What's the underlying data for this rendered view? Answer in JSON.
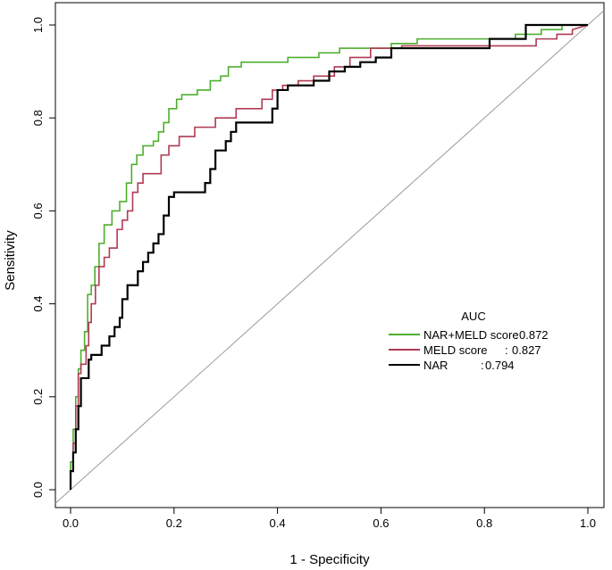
{
  "chart_data": {
    "type": "line",
    "xlabel": "1 - Specificity",
    "ylabel": "Sensitivity",
    "xlim": [
      0,
      1
    ],
    "ylim": [
      0,
      1
    ],
    "xticks": [
      "0.0",
      "0.2",
      "0.4",
      "0.6",
      "0.8",
      "1.0"
    ],
    "yticks": [
      "0.0",
      "0.2",
      "0.4",
      "0.6",
      "0.8",
      "1.0"
    ],
    "legend": {
      "title": "AUC",
      "position": "lower-right",
      "entries": [
        {
          "label": "NAR+MELD score",
          "sep": ":",
          "value": "0.872",
          "color": "#4daf2f"
        },
        {
          "label": "MELD score",
          "sep": ":",
          "value": "0.827",
          "color": "#b03a52"
        },
        {
          "label": "NAR",
          "sep": ":",
          "value": "0.794",
          "color": "#000000"
        }
      ]
    },
    "reference_line": {
      "from": [
        0,
        0
      ],
      "to": [
        1,
        1
      ],
      "color": "#9a9a9a"
    },
    "series": [
      {
        "name": "NAR+MELD score",
        "auc": 0.872,
        "color": "#4daf2f",
        "points": [
          [
            0,
            0
          ],
          [
            0,
            0.06
          ],
          [
            0.005,
            0.06
          ],
          [
            0.005,
            0.13
          ],
          [
            0.01,
            0.13
          ],
          [
            0.01,
            0.2
          ],
          [
            0.015,
            0.2
          ],
          [
            0.015,
            0.26
          ],
          [
            0.02,
            0.26
          ],
          [
            0.02,
            0.3
          ],
          [
            0.027,
            0.3
          ],
          [
            0.027,
            0.34
          ],
          [
            0.033,
            0.34
          ],
          [
            0.033,
            0.42
          ],
          [
            0.04,
            0.42
          ],
          [
            0.04,
            0.44
          ],
          [
            0.047,
            0.44
          ],
          [
            0.047,
            0.48
          ],
          [
            0.055,
            0.48
          ],
          [
            0.055,
            0.53
          ],
          [
            0.065,
            0.53
          ],
          [
            0.065,
            0.57
          ],
          [
            0.08,
            0.57
          ],
          [
            0.08,
            0.6
          ],
          [
            0.095,
            0.6
          ],
          [
            0.095,
            0.62
          ],
          [
            0.108,
            0.62
          ],
          [
            0.108,
            0.66
          ],
          [
            0.118,
            0.66
          ],
          [
            0.118,
            0.7
          ],
          [
            0.128,
            0.7
          ],
          [
            0.128,
            0.72
          ],
          [
            0.14,
            0.72
          ],
          [
            0.14,
            0.74
          ],
          [
            0.16,
            0.74
          ],
          [
            0.16,
            0.75
          ],
          [
            0.17,
            0.75
          ],
          [
            0.17,
            0.77
          ],
          [
            0.18,
            0.77
          ],
          [
            0.18,
            0.79
          ],
          [
            0.19,
            0.79
          ],
          [
            0.19,
            0.82
          ],
          [
            0.205,
            0.82
          ],
          [
            0.205,
            0.84
          ],
          [
            0.215,
            0.84
          ],
          [
            0.215,
            0.85
          ],
          [
            0.245,
            0.85
          ],
          [
            0.245,
            0.86
          ],
          [
            0.27,
            0.86
          ],
          [
            0.27,
            0.88
          ],
          [
            0.29,
            0.88
          ],
          [
            0.29,
            0.89
          ],
          [
            0.305,
            0.89
          ],
          [
            0.305,
            0.91
          ],
          [
            0.33,
            0.91
          ],
          [
            0.33,
            0.92
          ],
          [
            0.42,
            0.92
          ],
          [
            0.42,
            0.93
          ],
          [
            0.48,
            0.93
          ],
          [
            0.48,
            0.94
          ],
          [
            0.52,
            0.94
          ],
          [
            0.52,
            0.95
          ],
          [
            0.62,
            0.95
          ],
          [
            0.62,
            0.96
          ],
          [
            0.67,
            0.96
          ],
          [
            0.67,
            0.97
          ],
          [
            0.86,
            0.97
          ],
          [
            0.86,
            0.98
          ],
          [
            0.91,
            0.98
          ],
          [
            0.91,
            0.99
          ],
          [
            0.95,
            0.99
          ],
          [
            0.95,
            1
          ],
          [
            1,
            1
          ]
        ]
      },
      {
        "name": "MELD score",
        "auc": 0.827,
        "color": "#b03a52",
        "points": [
          [
            0,
            0
          ],
          [
            0,
            0.04
          ],
          [
            0.005,
            0.04
          ],
          [
            0.005,
            0.1
          ],
          [
            0.01,
            0.1
          ],
          [
            0.01,
            0.18
          ],
          [
            0.015,
            0.18
          ],
          [
            0.015,
            0.25
          ],
          [
            0.02,
            0.25
          ],
          [
            0.02,
            0.27
          ],
          [
            0.03,
            0.27
          ],
          [
            0.03,
            0.31
          ],
          [
            0.035,
            0.31
          ],
          [
            0.035,
            0.36
          ],
          [
            0.04,
            0.36
          ],
          [
            0.04,
            0.4
          ],
          [
            0.048,
            0.4
          ],
          [
            0.048,
            0.44
          ],
          [
            0.055,
            0.44
          ],
          [
            0.055,
            0.48
          ],
          [
            0.065,
            0.48
          ],
          [
            0.065,
            0.5
          ],
          [
            0.075,
            0.5
          ],
          [
            0.075,
            0.52
          ],
          [
            0.09,
            0.52
          ],
          [
            0.09,
            0.56
          ],
          [
            0.1,
            0.56
          ],
          [
            0.1,
            0.58
          ],
          [
            0.11,
            0.58
          ],
          [
            0.11,
            0.6
          ],
          [
            0.12,
            0.6
          ],
          [
            0.12,
            0.64
          ],
          [
            0.13,
            0.64
          ],
          [
            0.13,
            0.66
          ],
          [
            0.14,
            0.66
          ],
          [
            0.14,
            0.68
          ],
          [
            0.175,
            0.68
          ],
          [
            0.175,
            0.72
          ],
          [
            0.19,
            0.72
          ],
          [
            0.19,
            0.74
          ],
          [
            0.21,
            0.74
          ],
          [
            0.21,
            0.76
          ],
          [
            0.24,
            0.76
          ],
          [
            0.24,
            0.78
          ],
          [
            0.28,
            0.78
          ],
          [
            0.28,
            0.8
          ],
          [
            0.32,
            0.8
          ],
          [
            0.32,
            0.82
          ],
          [
            0.37,
            0.82
          ],
          [
            0.37,
            0.84
          ],
          [
            0.39,
            0.84
          ],
          [
            0.39,
            0.86
          ],
          [
            0.41,
            0.86
          ],
          [
            0.41,
            0.87
          ],
          [
            0.44,
            0.87
          ],
          [
            0.44,
            0.88
          ],
          [
            0.47,
            0.88
          ],
          [
            0.47,
            0.89
          ],
          [
            0.51,
            0.89
          ],
          [
            0.51,
            0.91
          ],
          [
            0.54,
            0.91
          ],
          [
            0.54,
            0.93
          ],
          [
            0.58,
            0.93
          ],
          [
            0.58,
            0.95
          ],
          [
            0.64,
            0.95
          ],
          [
            0.64,
            0.955
          ],
          [
            0.9,
            0.955
          ],
          [
            0.9,
            0.97
          ],
          [
            0.94,
            0.97
          ],
          [
            0.94,
            0.98
          ],
          [
            0.97,
            0.98
          ],
          [
            0.97,
            0.99
          ],
          [
            1,
            1
          ]
        ]
      },
      {
        "name": "NAR",
        "auc": 0.794,
        "color": "#000000",
        "points": [
          [
            0,
            0
          ],
          [
            0,
            0.04
          ],
          [
            0.005,
            0.04
          ],
          [
            0.005,
            0.08
          ],
          [
            0.01,
            0.08
          ],
          [
            0.01,
            0.13
          ],
          [
            0.015,
            0.13
          ],
          [
            0.015,
            0.18
          ],
          [
            0.02,
            0.18
          ],
          [
            0.02,
            0.24
          ],
          [
            0.035,
            0.24
          ],
          [
            0.035,
            0.28
          ],
          [
            0.04,
            0.28
          ],
          [
            0.04,
            0.29
          ],
          [
            0.06,
            0.29
          ],
          [
            0.06,
            0.31
          ],
          [
            0.075,
            0.31
          ],
          [
            0.075,
            0.33
          ],
          [
            0.085,
            0.33
          ],
          [
            0.085,
            0.35
          ],
          [
            0.095,
            0.35
          ],
          [
            0.095,
            0.37
          ],
          [
            0.1,
            0.37
          ],
          [
            0.1,
            0.41
          ],
          [
            0.11,
            0.41
          ],
          [
            0.11,
            0.44
          ],
          [
            0.13,
            0.44
          ],
          [
            0.13,
            0.47
          ],
          [
            0.14,
            0.47
          ],
          [
            0.14,
            0.49
          ],
          [
            0.15,
            0.49
          ],
          [
            0.15,
            0.51
          ],
          [
            0.16,
            0.51
          ],
          [
            0.16,
            0.53
          ],
          [
            0.17,
            0.53
          ],
          [
            0.17,
            0.55
          ],
          [
            0.18,
            0.55
          ],
          [
            0.18,
            0.59
          ],
          [
            0.19,
            0.59
          ],
          [
            0.19,
            0.63
          ],
          [
            0.2,
            0.63
          ],
          [
            0.2,
            0.64
          ],
          [
            0.26,
            0.64
          ],
          [
            0.26,
            0.66
          ],
          [
            0.27,
            0.66
          ],
          [
            0.27,
            0.69
          ],
          [
            0.28,
            0.69
          ],
          [
            0.28,
            0.73
          ],
          [
            0.3,
            0.73
          ],
          [
            0.3,
            0.75
          ],
          [
            0.31,
            0.75
          ],
          [
            0.31,
            0.77
          ],
          [
            0.32,
            0.77
          ],
          [
            0.32,
            0.79
          ],
          [
            0.39,
            0.79
          ],
          [
            0.39,
            0.82
          ],
          [
            0.4,
            0.82
          ],
          [
            0.4,
            0.86
          ],
          [
            0.42,
            0.86
          ],
          [
            0.42,
            0.87
          ],
          [
            0.47,
            0.87
          ],
          [
            0.47,
            0.88
          ],
          [
            0.5,
            0.88
          ],
          [
            0.5,
            0.9
          ],
          [
            0.53,
            0.9
          ],
          [
            0.53,
            0.91
          ],
          [
            0.56,
            0.91
          ],
          [
            0.56,
            0.92
          ],
          [
            0.59,
            0.92
          ],
          [
            0.59,
            0.93
          ],
          [
            0.62,
            0.93
          ],
          [
            0.62,
            0.95
          ],
          [
            0.81,
            0.95
          ],
          [
            0.81,
            0.97
          ],
          [
            0.88,
            0.97
          ],
          [
            0.88,
            1
          ],
          [
            1,
            1
          ]
        ]
      }
    ]
  }
}
